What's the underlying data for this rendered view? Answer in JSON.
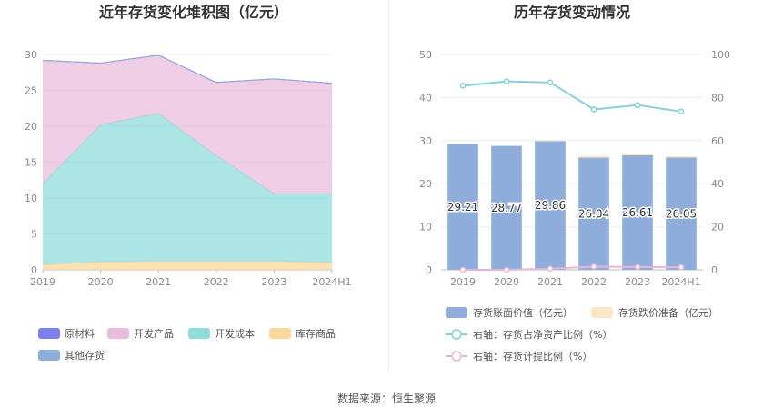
{
  "source_text": "数据来源：恒生聚源",
  "chart_data": [
    {
      "type": "area",
      "stacked": true,
      "title": "近年存货变化堆积图（亿元）",
      "categories": [
        "2019",
        "2020",
        "2021",
        "2022",
        "2023",
        "2024H1"
      ],
      "ylim": [
        0,
        30
      ],
      "yticks": [
        "0",
        "5",
        "10",
        "15",
        "20",
        "25",
        "30"
      ],
      "grid": true,
      "legend_position": "bottom-left",
      "series": [
        {
          "name": "原材料",
          "color": "#7b7ff0",
          "values": [
            0,
            0,
            0,
            0,
            0,
            0
          ]
        },
        {
          "name": "开发产品",
          "color": "#e9bcdc",
          "values": [
            17.2,
            8.6,
            8.1,
            10.2,
            16.0,
            15.4
          ]
        },
        {
          "name": "开发成本",
          "color": "#8fdcdc",
          "values": [
            11.3,
            19.1,
            20.6,
            14.7,
            9.4,
            9.6
          ]
        },
        {
          "name": "库存商品",
          "color": "#fbd79a",
          "values": [
            0.7,
            1.1,
            1.2,
            1.2,
            1.2,
            1.0
          ]
        },
        {
          "name": "其他存货",
          "color": "#8eaddb",
          "values": [
            0,
            0,
            0,
            0,
            0,
            0
          ]
        }
      ]
    },
    {
      "type": "bar",
      "stacked": true,
      "title": "历年存货变动情况",
      "categories": [
        "2019",
        "2020",
        "2021",
        "2022",
        "2023",
        "2024H1"
      ],
      "ylim": [
        0,
        50
      ],
      "yticks": [
        "0",
        "10",
        "20",
        "30",
        "40",
        "50"
      ],
      "y2lim": [
        0,
        100
      ],
      "y2ticks": [
        "0",
        "20",
        "40",
        "60",
        "80",
        "100"
      ],
      "grid": true,
      "legend_position": "bottom",
      "bar_series": [
        {
          "name": "存货账面价值（亿元）",
          "color": "#8eaddb",
          "values": [
            29.21,
            28.77,
            29.86,
            26.04,
            26.61,
            26.05
          ]
        },
        {
          "name": "存货跌价准备（亿元）",
          "color": "#fbe6c3",
          "values": [
            0,
            0,
            0.15,
            0.4,
            0.35,
            0.3
          ]
        }
      ],
      "bar_labels": [
        "29.21",
        "28.77",
        "29.86",
        "26.04",
        "26.61",
        "26.05"
      ],
      "line_series": [
        {
          "name": "右轴：存货占净资产比例（%）",
          "color": "#84d0d8",
          "axis": "right",
          "values": [
            85.5,
            87.5,
            87.0,
            74.5,
            76.5,
            73.5
          ]
        },
        {
          "name": "右轴：存货计提比例（%）",
          "color": "#e6b6d8",
          "axis": "right",
          "values": [
            0,
            0,
            0.5,
            1.5,
            1.3,
            1.2
          ]
        }
      ]
    }
  ]
}
